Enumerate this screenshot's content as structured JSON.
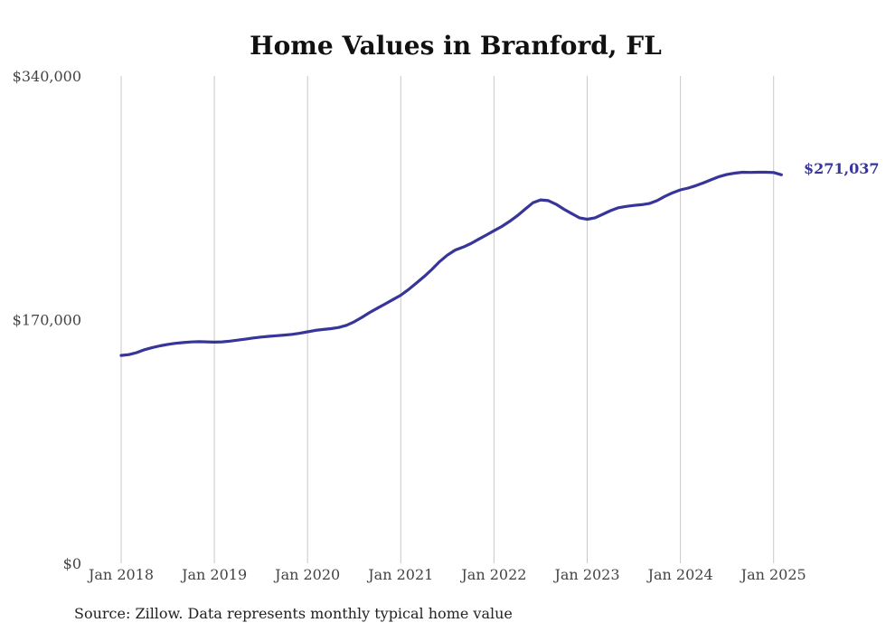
{
  "chart_data": {
    "type": "line",
    "title": "Home Values in Branford, FL",
    "xlabel": "",
    "ylabel": "",
    "series_color": "#37359a",
    "x_ticks": [
      "Jan 2018",
      "Jan 2019",
      "Jan 2020",
      "Jan 2021",
      "Jan 2022",
      "Jan 2023",
      "Jan 2024",
      "Jan 2025"
    ],
    "y_ticks": [
      "$0",
      "$170,000",
      "$340,000"
    ],
    "ylim": [
      0,
      340000
    ],
    "grid": "vertical gridlines at each January",
    "end_label": "$271,037",
    "source": "Source: Zillow. Data represents monthly typical home value",
    "series": [
      {
        "x": [
          "2018-01",
          "2018-02",
          "2018-03",
          "2018-04",
          "2018-05",
          "2018-06",
          "2018-07",
          "2018-08",
          "2018-09",
          "2018-10",
          "2018-11",
          "2018-12",
          "2019-01",
          "2019-02",
          "2019-03",
          "2019-04",
          "2019-05",
          "2019-06",
          "2019-07",
          "2019-08",
          "2019-09",
          "2019-10",
          "2019-11",
          "2019-12",
          "2020-01",
          "2020-02",
          "2020-03",
          "2020-04",
          "2020-05",
          "2020-06",
          "2020-07",
          "2020-08",
          "2020-09",
          "2020-10",
          "2020-11",
          "2020-12",
          "2021-01",
          "2021-02",
          "2021-03",
          "2021-04",
          "2021-05",
          "2021-06",
          "2021-07",
          "2021-08",
          "2021-09",
          "2021-10",
          "2021-11",
          "2021-12",
          "2022-01",
          "2022-02",
          "2022-03",
          "2022-04",
          "2022-05",
          "2022-06",
          "2022-07",
          "2022-08",
          "2022-09",
          "2022-10",
          "2022-11",
          "2022-12",
          "2023-01",
          "2023-02",
          "2023-03",
          "2023-04",
          "2023-05",
          "2023-06",
          "2023-07",
          "2023-08",
          "2023-09",
          "2023-10",
          "2023-11",
          "2023-12",
          "2024-01",
          "2024-02",
          "2024-03",
          "2024-04",
          "2024-05",
          "2024-06",
          "2024-07",
          "2024-08",
          "2024-09",
          "2024-10",
          "2024-11",
          "2024-12",
          "2025-01",
          "2025-02"
        ],
        "values": [
          145000,
          145600,
          147000,
          149000,
          150500,
          151700,
          152700,
          153500,
          154000,
          154400,
          154600,
          154500,
          154300,
          154500,
          155000,
          155700,
          156400,
          157200,
          157800,
          158300,
          158800,
          159200,
          159700,
          160500,
          161500,
          162500,
          163100,
          163700,
          164500,
          166000,
          168500,
          171600,
          175000,
          178000,
          181000,
          184000,
          187000,
          191000,
          195500,
          200000,
          205000,
          210500,
          215000,
          218500,
          220500,
          223000,
          226000,
          229000,
          232000,
          235000,
          238500,
          242500,
          247000,
          251500,
          253500,
          253000,
          250500,
          247000,
          244000,
          241000,
          240000,
          241000,
          243500,
          246000,
          248000,
          249000,
          249700,
          250200,
          251000,
          253000,
          256000,
          258500,
          260500,
          261800,
          263500,
          265500,
          267700,
          269800,
          271300,
          272200,
          272800,
          272700,
          272800,
          272800,
          272600,
          271037
        ]
      }
    ]
  }
}
